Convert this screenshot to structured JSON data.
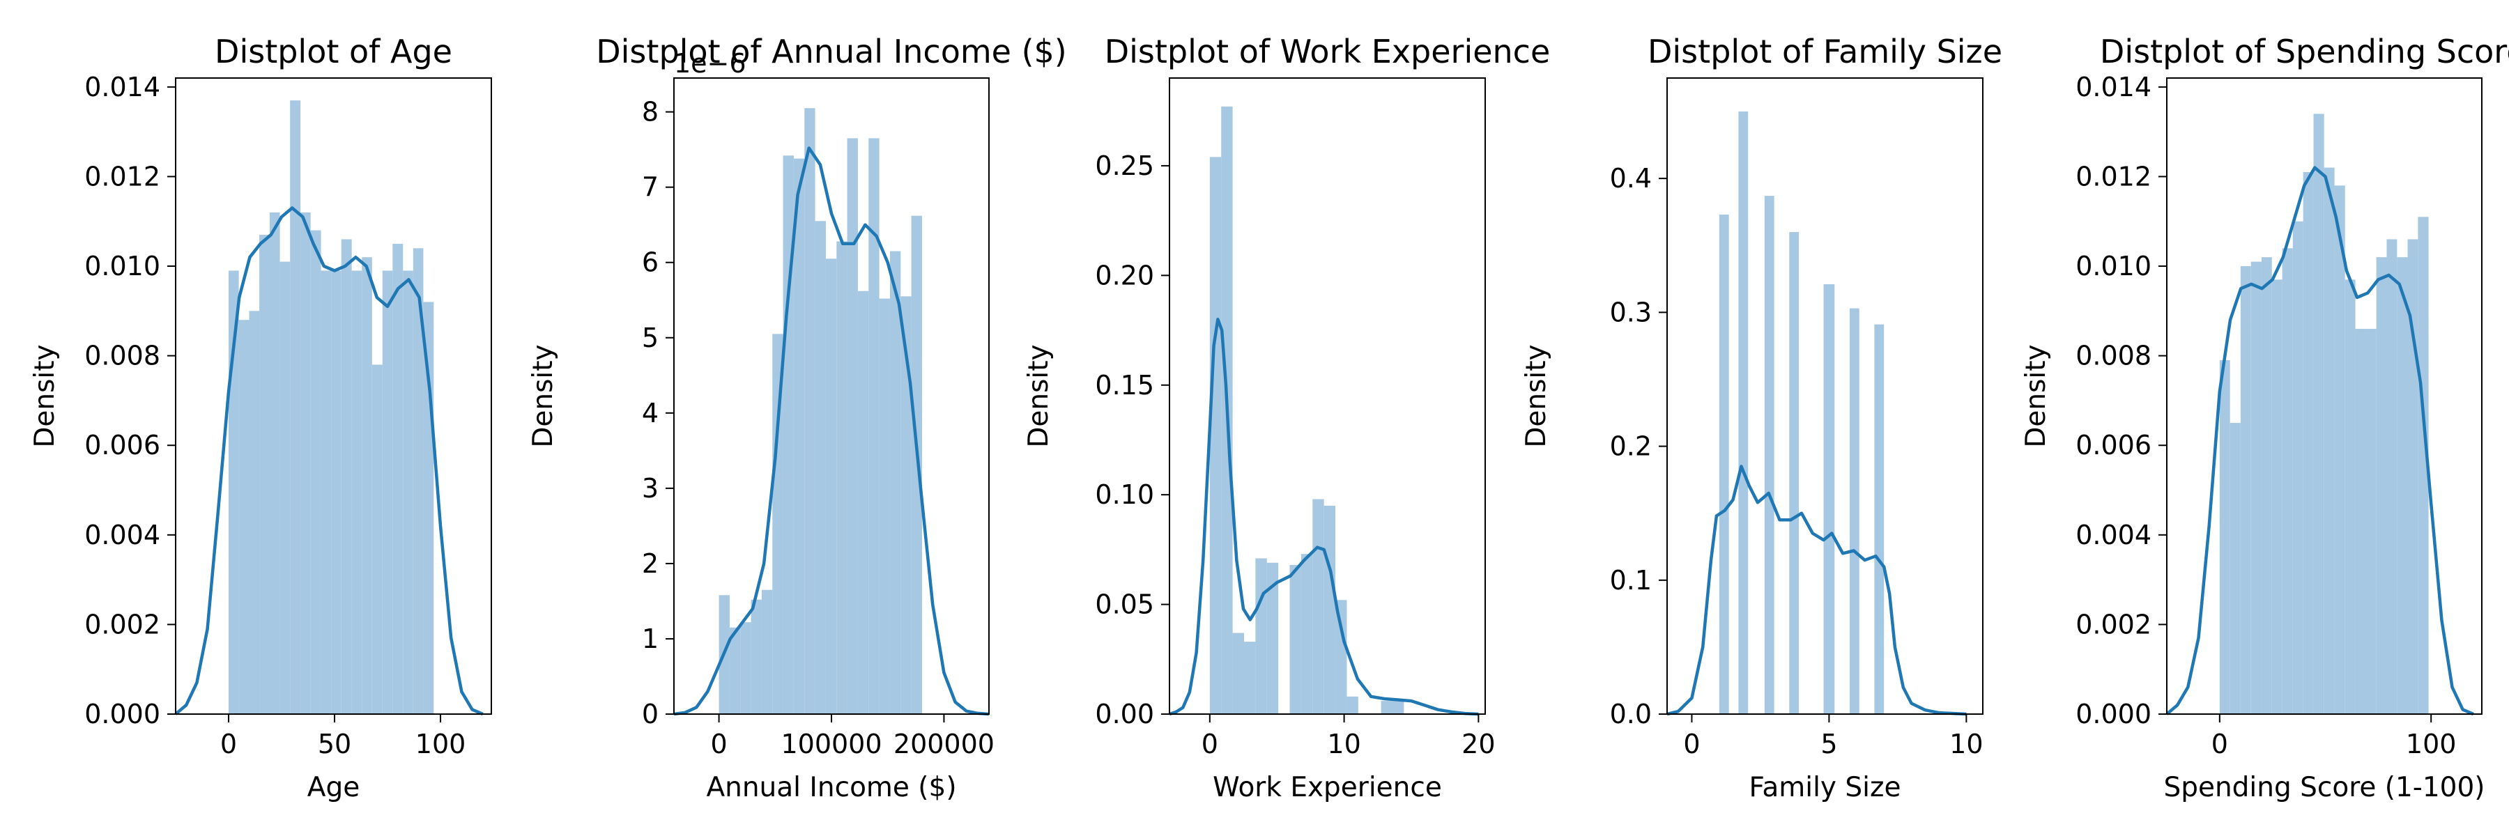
{
  "figure": {
    "background": "#ffffff",
    "hist_color": "#a6c8e2",
    "kde_color": "#1f77b4"
  },
  "chart_data": [
    {
      "type": "histogram",
      "title": "Distplot of Age",
      "xlabel": "Age",
      "ylabel": "Density",
      "xlim": [
        -25,
        124
      ],
      "ylim": [
        0,
        0.0142
      ],
      "xticks": [
        0,
        50,
        100
      ],
      "xtick_labels": [
        "0",
        "50",
        "100"
      ],
      "yticks": [
        0,
        0.002,
        0.004,
        0.006,
        0.008,
        0.01,
        0.012,
        0.014
      ],
      "ytick_labels": [
        "0.000",
        "0.002",
        "0.004",
        "0.006",
        "0.008",
        "0.010",
        "0.012",
        "0.014"
      ],
      "offset_label": "",
      "bins": [
        {
          "x0": 0,
          "x1": 4.8,
          "y": 0.0099
        },
        {
          "x0": 4.8,
          "x1": 9.7,
          "y": 0.0088
        },
        {
          "x0": 9.7,
          "x1": 14.5,
          "y": 0.009
        },
        {
          "x0": 14.5,
          "x1": 19.4,
          "y": 0.0107
        },
        {
          "x0": 19.4,
          "x1": 24.2,
          "y": 0.0112
        },
        {
          "x0": 24.2,
          "x1": 29.0,
          "y": 0.0101
        },
        {
          "x0": 29.0,
          "x1": 33.9,
          "y": 0.0137
        },
        {
          "x0": 33.9,
          "x1": 38.7,
          "y": 0.0112
        },
        {
          "x0": 38.7,
          "x1": 43.6,
          "y": 0.0108
        },
        {
          "x0": 43.6,
          "x1": 48.4,
          "y": 0.0099
        },
        {
          "x0": 48.4,
          "x1": 53.2,
          "y": 0.0099
        },
        {
          "x0": 53.2,
          "x1": 58.1,
          "y": 0.0106
        },
        {
          "x0": 58.1,
          "x1": 62.9,
          "y": 0.0099
        },
        {
          "x0": 62.9,
          "x1": 67.7,
          "y": 0.0102
        },
        {
          "x0": 67.7,
          "x1": 72.6,
          "y": 0.0078
        },
        {
          "x0": 72.6,
          "x1": 77.4,
          "y": 0.0099
        },
        {
          "x0": 77.4,
          "x1": 82.3,
          "y": 0.0105
        },
        {
          "x0": 82.3,
          "x1": 87.1,
          "y": 0.0099
        },
        {
          "x0": 87.1,
          "x1": 91.9,
          "y": 0.0104
        },
        {
          "x0": 91.9,
          "x1": 96.8,
          "y": 0.0092
        }
      ],
      "kde": [
        [
          -25,
          0
        ],
        [
          -20,
          0.0002
        ],
        [
          -15,
          0.0007
        ],
        [
          -10,
          0.0019
        ],
        [
          -5,
          0.0045
        ],
        [
          0,
          0.0072
        ],
        [
          5,
          0.0093
        ],
        [
          10,
          0.0102
        ],
        [
          15,
          0.0105
        ],
        [
          20,
          0.0107
        ],
        [
          25,
          0.0111
        ],
        [
          30,
          0.0113
        ],
        [
          35,
          0.0111
        ],
        [
          40,
          0.0105
        ],
        [
          45,
          0.01
        ],
        [
          50,
          0.0099
        ],
        [
          55,
          0.01
        ],
        [
          60,
          0.0102
        ],
        [
          65,
          0.01
        ],
        [
          70,
          0.0093
        ],
        [
          75,
          0.0091
        ],
        [
          80,
          0.0095
        ],
        [
          85,
          0.0097
        ],
        [
          90,
          0.0093
        ],
        [
          95,
          0.0072
        ],
        [
          100,
          0.0042
        ],
        [
          105,
          0.0017
        ],
        [
          110,
          0.0005
        ],
        [
          115,
          0.0001
        ],
        [
          120,
          0
        ]
      ]
    },
    {
      "type": "histogram",
      "title": "Distplot of Annual Income ($)",
      "xlabel": "Annual Income ($)",
      "ylabel": "Density",
      "xlim": [
        -40000,
        240000
      ],
      "ylim": [
        0,
        8.45
      ],
      "xticks": [
        0,
        100000,
        200000
      ],
      "xtick_labels": [
        "0",
        "100000",
        "200000"
      ],
      "yticks": [
        0,
        1,
        2,
        3,
        4,
        5,
        6,
        7,
        8
      ],
      "ytick_labels": [
        "0",
        "1",
        "2",
        "3",
        "4",
        "5",
        "6",
        "7",
        "8"
      ],
      "offset_label": "1e−6",
      "bins": [
        {
          "x0": 0,
          "x1": 9500,
          "y": 1.58
        },
        {
          "x0": 9500,
          "x1": 19000,
          "y": 1.15
        },
        {
          "x0": 19000,
          "x1": 28500,
          "y": 1.22
        },
        {
          "x0": 28500,
          "x1": 38000,
          "y": 1.52
        },
        {
          "x0": 38000,
          "x1": 47500,
          "y": 1.65
        },
        {
          "x0": 47500,
          "x1": 57000,
          "y": 5.05
        },
        {
          "x0": 57000,
          "x1": 66500,
          "y": 7.42
        },
        {
          "x0": 66500,
          "x1": 76000,
          "y": 7.38
        },
        {
          "x0": 76000,
          "x1": 85500,
          "y": 8.05
        },
        {
          "x0": 85500,
          "x1": 95000,
          "y": 6.55
        },
        {
          "x0": 95000,
          "x1": 104500,
          "y": 6.05
        },
        {
          "x0": 104500,
          "x1": 114000,
          "y": 6.28
        },
        {
          "x0": 114000,
          "x1": 123500,
          "y": 7.65
        },
        {
          "x0": 123500,
          "x1": 133000,
          "y": 5.62
        },
        {
          "x0": 133000,
          "x1": 142500,
          "y": 7.65
        },
        {
          "x0": 142500,
          "x1": 152000,
          "y": 5.52
        },
        {
          "x0": 152000,
          "x1": 161500,
          "y": 6.15
        },
        {
          "x0": 161500,
          "x1": 171000,
          "y": 5.55
        },
        {
          "x0": 171000,
          "x1": 180500,
          "y": 6.62
        }
      ],
      "kde": [
        [
          -40000,
          0
        ],
        [
          -30000,
          0.02
        ],
        [
          -20000,
          0.09
        ],
        [
          -10000,
          0.3
        ],
        [
          0,
          0.65
        ],
        [
          10000,
          1.0
        ],
        [
          20000,
          1.2
        ],
        [
          30000,
          1.4
        ],
        [
          40000,
          2.0
        ],
        [
          50000,
          3.4
        ],
        [
          60000,
          5.3
        ],
        [
          70000,
          6.9
        ],
        [
          80000,
          7.52
        ],
        [
          90000,
          7.3
        ],
        [
          100000,
          6.65
        ],
        [
          110000,
          6.25
        ],
        [
          120000,
          6.25
        ],
        [
          130000,
          6.5
        ],
        [
          140000,
          6.35
        ],
        [
          150000,
          6.0
        ],
        [
          160000,
          5.45
        ],
        [
          170000,
          4.4
        ],
        [
          180000,
          2.9
        ],
        [
          190000,
          1.45
        ],
        [
          200000,
          0.55
        ],
        [
          210000,
          0.16
        ],
        [
          220000,
          0.04
        ],
        [
          230000,
          0.01
        ],
        [
          240000,
          0
        ]
      ]
    },
    {
      "type": "histogram",
      "title": "Distplot of Work Experience",
      "xlabel": "Work Experience",
      "ylabel": "Density",
      "xlim": [
        -3,
        20.5
      ],
      "ylim": [
        0,
        0.29
      ],
      "xticks": [
        0,
        10,
        20
      ],
      "xtick_labels": [
        "0",
        "10",
        "20"
      ],
      "yticks": [
        0,
        0.05,
        0.1,
        0.15,
        0.2,
        0.25
      ],
      "ytick_labels": [
        "0.00",
        "0.05",
        "0.10",
        "0.15",
        "0.20",
        "0.25"
      ],
      "offset_label": "",
      "bins": [
        {
          "x0": 0,
          "x1": 0.85,
          "y": 0.254
        },
        {
          "x0": 0.85,
          "x1": 1.7,
          "y": 0.277
        },
        {
          "x0": 1.7,
          "x1": 2.55,
          "y": 0.037
        },
        {
          "x0": 2.55,
          "x1": 3.4,
          "y": 0.033
        },
        {
          "x0": 3.4,
          "x1": 4.25,
          "y": 0.071
        },
        {
          "x0": 4.25,
          "x1": 5.1,
          "y": 0.069
        },
        {
          "x0": 5.1,
          "x1": 5.95,
          "y": 0.0
        },
        {
          "x0": 5.95,
          "x1": 6.8,
          "y": 0.068
        },
        {
          "x0": 6.8,
          "x1": 7.65,
          "y": 0.073
        },
        {
          "x0": 7.65,
          "x1": 8.5,
          "y": 0.098
        },
        {
          "x0": 8.5,
          "x1": 9.35,
          "y": 0.095
        },
        {
          "x0": 9.35,
          "x1": 10.2,
          "y": 0.052
        },
        {
          "x0": 10.2,
          "x1": 11.05,
          "y": 0.008
        },
        {
          "x0": 11.05,
          "x1": 11.9,
          "y": 0.0
        },
        {
          "x0": 11.9,
          "x1": 12.75,
          "y": 0.0
        },
        {
          "x0": 12.75,
          "x1": 13.6,
          "y": 0.006
        },
        {
          "x0": 13.6,
          "x1": 14.45,
          "y": 0.006
        }
      ],
      "kde": [
        [
          -3,
          0
        ],
        [
          -2.5,
          0.001
        ],
        [
          -2,
          0.003
        ],
        [
          -1.5,
          0.01
        ],
        [
          -1,
          0.028
        ],
        [
          -0.5,
          0.07
        ],
        [
          0,
          0.13
        ],
        [
          0.3,
          0.168
        ],
        [
          0.6,
          0.18
        ],
        [
          0.9,
          0.175
        ],
        [
          1.2,
          0.15
        ],
        [
          1.5,
          0.115
        ],
        [
          2,
          0.07
        ],
        [
          2.5,
          0.048
        ],
        [
          3,
          0.043
        ],
        [
          3.5,
          0.048
        ],
        [
          4,
          0.055
        ],
        [
          5,
          0.06
        ],
        [
          6,
          0.063
        ],
        [
          7,
          0.07
        ],
        [
          8,
          0.076
        ],
        [
          8.5,
          0.075
        ],
        [
          9,
          0.065
        ],
        [
          9.5,
          0.047
        ],
        [
          10,
          0.033
        ],
        [
          11,
          0.016
        ],
        [
          12,
          0.008
        ],
        [
          13,
          0.007
        ],
        [
          14,
          0.0065
        ],
        [
          15,
          0.006
        ],
        [
          16,
          0.004
        ],
        [
          17,
          0.002
        ],
        [
          18,
          0.001
        ],
        [
          19,
          0.0003
        ],
        [
          20,
          0
        ]
      ]
    },
    {
      "type": "histogram",
      "title": "Distplot of Family Size",
      "xlabel": "Family Size",
      "ylabel": "Density",
      "xlim": [
        -0.9,
        10.6
      ],
      "ylim": [
        0,
        0.475
      ],
      "xticks": [
        0,
        5,
        10
      ],
      "xtick_labels": [
        "0",
        "5",
        "10"
      ],
      "yticks": [
        0,
        0.1,
        0.2,
        0.3,
        0.4
      ],
      "ytick_labels": [
        "0.0",
        "0.1",
        "0.2",
        "0.3",
        "0.4"
      ],
      "offset_label": "",
      "bins": [
        {
          "x0": 1.0,
          "x1": 1.35,
          "y": 0.373
        },
        {
          "x0": 1.35,
          "x1": 1.7,
          "y": 0.0
        },
        {
          "x0": 1.7,
          "x1": 2.05,
          "y": 0.45
        },
        {
          "x0": 2.05,
          "x1": 2.65,
          "y": 0.0
        },
        {
          "x0": 2.65,
          "x1": 3.0,
          "y": 0.387
        },
        {
          "x0": 3.0,
          "x1": 3.55,
          "y": 0.0
        },
        {
          "x0": 3.55,
          "x1": 3.9,
          "y": 0.36
        },
        {
          "x0": 3.9,
          "x1": 4.45,
          "y": 0.0
        },
        {
          "x0": 4.45,
          "x1": 4.8,
          "y": 0.0
        },
        {
          "x0": 4.8,
          "x1": 5.2,
          "y": 0.321
        },
        {
          "x0": 5.2,
          "x1": 5.75,
          "y": 0.0
        },
        {
          "x0": 5.75,
          "x1": 6.1,
          "y": 0.303
        },
        {
          "x0": 6.1,
          "x1": 6.65,
          "y": 0.0
        },
        {
          "x0": 6.65,
          "x1": 7.0,
          "y": 0.291
        }
      ],
      "kde": [
        [
          -0.9,
          0
        ],
        [
          -0.5,
          0.002
        ],
        [
          0,
          0.012
        ],
        [
          0.4,
          0.05
        ],
        [
          0.7,
          0.115
        ],
        [
          0.9,
          0.148
        ],
        [
          1.2,
          0.152
        ],
        [
          1.5,
          0.16
        ],
        [
          1.8,
          0.185
        ],
        [
          2.1,
          0.17
        ],
        [
          2.4,
          0.158
        ],
        [
          2.8,
          0.165
        ],
        [
          3.2,
          0.145
        ],
        [
          3.6,
          0.145
        ],
        [
          4.0,
          0.15
        ],
        [
          4.4,
          0.135
        ],
        [
          4.8,
          0.13
        ],
        [
          5.1,
          0.135
        ],
        [
          5.5,
          0.12
        ],
        [
          5.9,
          0.122
        ],
        [
          6.3,
          0.115
        ],
        [
          6.7,
          0.118
        ],
        [
          7.0,
          0.11
        ],
        [
          7.2,
          0.09
        ],
        [
          7.4,
          0.05
        ],
        [
          7.7,
          0.02
        ],
        [
          8.0,
          0.008
        ],
        [
          8.5,
          0.003
        ],
        [
          9.0,
          0.001
        ],
        [
          10,
          0
        ]
      ]
    },
    {
      "type": "histogram",
      "title": "Distplot of Spending Score (",
      "xlabel": "Spending Score (1-100)",
      "ylabel": "Density",
      "xlim": [
        -25,
        124
      ],
      "ylim": [
        0,
        0.0142
      ],
      "xticks": [
        0,
        100
      ],
      "xtick_labels": [
        "0",
        "100"
      ],
      "yticks": [
        0,
        0.002,
        0.004,
        0.006,
        0.008,
        0.01,
        0.012,
        0.014
      ],
      "ytick_labels": [
        "0.000",
        "0.002",
        "0.004",
        "0.006",
        "0.008",
        "0.010",
        "0.012",
        "0.014"
      ],
      "offset_label": "",
      "bins": [
        {
          "x0": 0,
          "x1": 4.9,
          "y": 0.0079
        },
        {
          "x0": 4.9,
          "x1": 9.9,
          "y": 0.0065
        },
        {
          "x0": 9.9,
          "x1": 14.8,
          "y": 0.01
        },
        {
          "x0": 14.8,
          "x1": 19.8,
          "y": 0.0101
        },
        {
          "x0": 19.8,
          "x1": 24.7,
          "y": 0.0102
        },
        {
          "x0": 24.7,
          "x1": 29.6,
          "y": 0.0097
        },
        {
          "x0": 29.6,
          "x1": 34.6,
          "y": 0.0104
        },
        {
          "x0": 34.6,
          "x1": 39.5,
          "y": 0.011
        },
        {
          "x0": 39.5,
          "x1": 44.4,
          "y": 0.0121
        },
        {
          "x0": 44.4,
          "x1": 49.4,
          "y": 0.0134
        },
        {
          "x0": 49.4,
          "x1": 54.3,
          "y": 0.0122
        },
        {
          "x0": 54.3,
          "x1": 59.3,
          "y": 0.0118
        },
        {
          "x0": 59.3,
          "x1": 64.2,
          "y": 0.0097
        },
        {
          "x0": 64.2,
          "x1": 69.1,
          "y": 0.0086
        },
        {
          "x0": 69.1,
          "x1": 74.1,
          "y": 0.0086
        },
        {
          "x0": 74.1,
          "x1": 79.0,
          "y": 0.0102
        },
        {
          "x0": 79.0,
          "x1": 83.9,
          "y": 0.0106
        },
        {
          "x0": 83.9,
          "x1": 88.9,
          "y": 0.0102
        },
        {
          "x0": 88.9,
          "x1": 93.8,
          "y": 0.0106
        },
        {
          "x0": 93.8,
          "x1": 98.8,
          "y": 0.0111
        }
      ],
      "kde": [
        [
          -25,
          0
        ],
        [
          -20,
          0.0002
        ],
        [
          -15,
          0.0006
        ],
        [
          -10,
          0.0017
        ],
        [
          -5,
          0.0042
        ],
        [
          0,
          0.0072
        ],
        [
          5,
          0.0088
        ],
        [
          10,
          0.0095
        ],
        [
          15,
          0.0096
        ],
        [
          20,
          0.0095
        ],
        [
          25,
          0.0097
        ],
        [
          30,
          0.0102
        ],
        [
          35,
          0.011
        ],
        [
          40,
          0.0118
        ],
        [
          45,
          0.0122
        ],
        [
          50,
          0.012
        ],
        [
          55,
          0.0111
        ],
        [
          60,
          0.0099
        ],
        [
          65,
          0.0093
        ],
        [
          70,
          0.0094
        ],
        [
          75,
          0.0097
        ],
        [
          80,
          0.0098
        ],
        [
          85,
          0.0096
        ],
        [
          90,
          0.0089
        ],
        [
          95,
          0.0074
        ],
        [
          100,
          0.0047
        ],
        [
          105,
          0.0021
        ],
        [
          110,
          0.0006
        ],
        [
          115,
          0.0001
        ],
        [
          120,
          0
        ]
      ]
    }
  ]
}
